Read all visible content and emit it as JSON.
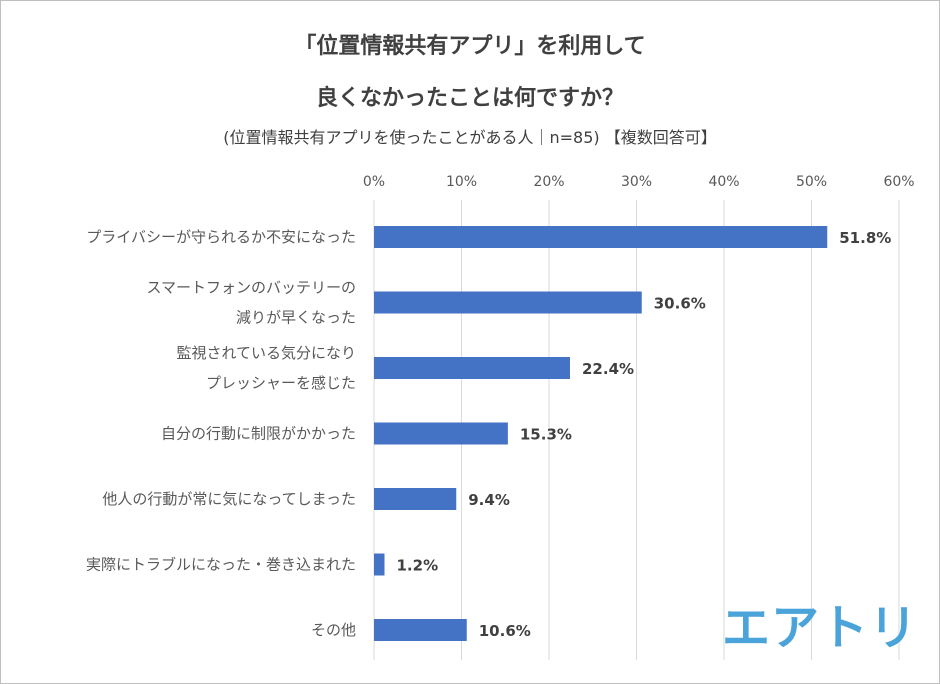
{
  "header": {
    "title_line1": "「位置情報共有アプリ」を利用して",
    "title_line2": "良くなかったことは何ですか？",
    "subtitle": "(位置情報共有アプリを使ったことがある人｜n=85) 【複数回答可】"
  },
  "logo": {
    "text": "エアトリ",
    "color": "#4aa3d9"
  },
  "chart_data": {
    "type": "bar",
    "orientation": "horizontal",
    "title": "「位置情報共有アプリ」を利用して良くなかったことは何ですか？",
    "xlim": [
      0,
      60
    ],
    "x_ticks": [
      "0%",
      "10%",
      "20%",
      "30%",
      "40%",
      "50%",
      "60%"
    ],
    "grid": true,
    "bar_color": "#4472c4",
    "categories": [
      [
        "プライバシーが守られるか不安になった"
      ],
      [
        "スマートフォンのバッテリーの",
        "減りが早くなった"
      ],
      [
        "監視されている気分になり",
        "プレッシャーを感じた"
      ],
      [
        "自分の行動に制限がかかった"
      ],
      [
        "他人の行動が常に気になってしまった"
      ],
      [
        "実際にトラブルになった・巻き込まれた"
      ],
      [
        "その他"
      ]
    ],
    "values": [
      51.8,
      30.6,
      22.4,
      15.3,
      9.4,
      1.2,
      10.6
    ],
    "data_labels": [
      "51.8%",
      "30.6%",
      "22.4%",
      "15.3%",
      "9.4%",
      "1.2%",
      "10.6%"
    ]
  }
}
